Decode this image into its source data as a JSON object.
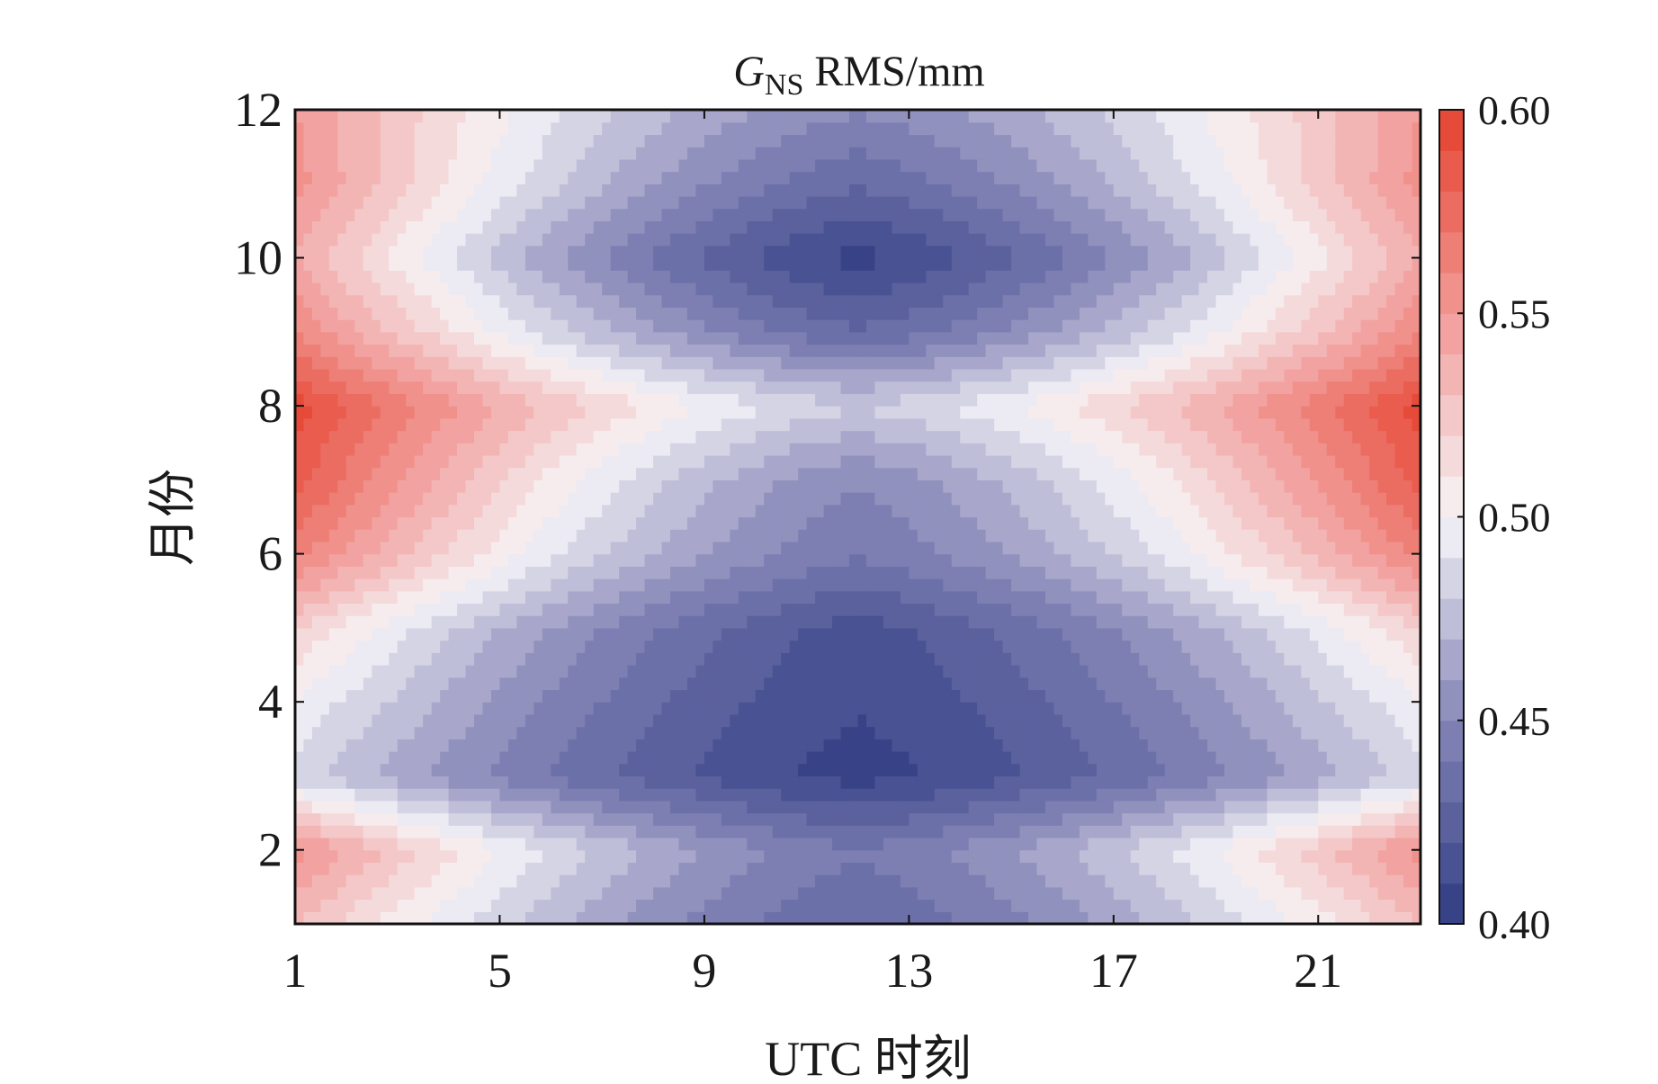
{
  "chart_data": {
    "type": "heatmap",
    "subtype": "filled-contour",
    "title": {
      "main": "G",
      "sub": "NS",
      "rest": " RMS/mm"
    },
    "xlabel": "UTC 时刻",
    "ylabel": "月份",
    "xlim": [
      1,
      23
    ],
    "ylim": [
      1,
      12
    ],
    "xticks": [
      1,
      5,
      9,
      13,
      17,
      21
    ],
    "yticks": [
      2,
      4,
      6,
      8,
      10,
      12
    ],
    "colorbar": {
      "range": [
        0.4,
        0.6
      ],
      "ticks": [
        "0.40",
        "0.45",
        "0.50",
        "0.55",
        "0.60"
      ],
      "level_step": 0.01,
      "colors": {
        "0.40": "#2f3b82",
        "0.45": "#8686b8",
        "0.50": "#f7f5f8",
        "0.55": "#f19a97",
        "0.60": "#e5412e"
      },
      "placement": "right"
    },
    "x": [
      1,
      2,
      3,
      4,
      5,
      6,
      7,
      8,
      9,
      10,
      11,
      12,
      13,
      14,
      15,
      16,
      17,
      18,
      19,
      20,
      21,
      22,
      23
    ],
    "y": [
      1,
      2,
      3,
      4,
      5,
      6,
      7,
      8,
      9,
      10,
      11,
      12
    ],
    "z": [
      [
        0.53,
        0.517,
        0.505,
        0.494,
        0.483,
        0.473,
        0.463,
        0.454,
        0.447,
        0.44,
        0.435,
        0.431,
        0.435,
        0.44,
        0.447,
        0.454,
        0.463,
        0.473,
        0.483,
        0.494,
        0.505,
        0.517,
        0.53
      ],
      [
        0.555,
        0.54,
        0.526,
        0.513,
        0.5,
        0.489,
        0.478,
        0.468,
        0.459,
        0.452,
        0.445,
        0.441,
        0.445,
        0.452,
        0.459,
        0.468,
        0.478,
        0.489,
        0.5,
        0.513,
        0.526,
        0.54,
        0.555
      ],
      [
        0.485,
        0.475,
        0.465,
        0.456,
        0.447,
        0.439,
        0.431,
        0.425,
        0.418,
        0.413,
        0.409,
        0.406,
        0.409,
        0.413,
        0.418,
        0.425,
        0.431,
        0.439,
        0.447,
        0.456,
        0.465,
        0.475,
        0.485
      ],
      [
        0.5,
        0.488,
        0.478,
        0.467,
        0.457,
        0.448,
        0.44,
        0.432,
        0.425,
        0.419,
        0.414,
        0.411,
        0.414,
        0.419,
        0.425,
        0.432,
        0.44,
        0.448,
        0.457,
        0.467,
        0.478,
        0.488,
        0.5
      ],
      [
        0.52,
        0.507,
        0.494,
        0.482,
        0.47,
        0.46,
        0.45,
        0.441,
        0.433,
        0.426,
        0.42,
        0.416,
        0.42,
        0.426,
        0.433,
        0.441,
        0.45,
        0.46,
        0.47,
        0.482,
        0.494,
        0.507,
        0.52
      ],
      [
        0.565,
        0.549,
        0.534,
        0.519,
        0.506,
        0.493,
        0.481,
        0.471,
        0.461,
        0.453,
        0.446,
        0.441,
        0.446,
        0.453,
        0.461,
        0.471,
        0.481,
        0.493,
        0.506,
        0.519,
        0.534,
        0.549,
        0.565
      ],
      [
        0.585,
        0.568,
        0.551,
        0.536,
        0.521,
        0.507,
        0.495,
        0.483,
        0.473,
        0.464,
        0.456,
        0.451,
        0.456,
        0.464,
        0.473,
        0.483,
        0.495,
        0.507,
        0.521,
        0.536,
        0.551,
        0.568,
        0.585
      ],
      [
        0.595,
        0.58,
        0.566,
        0.553,
        0.54,
        0.529,
        0.518,
        0.508,
        0.499,
        0.492,
        0.485,
        0.481,
        0.485,
        0.492,
        0.499,
        0.508,
        0.518,
        0.529,
        0.54,
        0.553,
        0.566,
        0.58,
        0.595
      ],
      [
        0.56,
        0.543,
        0.528,
        0.513,
        0.498,
        0.485,
        0.473,
        0.462,
        0.452,
        0.443,
        0.436,
        0.431,
        0.436,
        0.443,
        0.452,
        0.462,
        0.473,
        0.485,
        0.498,
        0.513,
        0.528,
        0.543,
        0.56
      ],
      [
        0.54,
        0.523,
        0.506,
        0.491,
        0.476,
        0.462,
        0.45,
        0.438,
        0.428,
        0.419,
        0.411,
        0.406,
        0.411,
        0.419,
        0.428,
        0.438,
        0.45,
        0.462,
        0.476,
        0.491,
        0.506,
        0.523,
        0.54
      ],
      [
        0.555,
        0.539,
        0.524,
        0.509,
        0.496,
        0.483,
        0.471,
        0.461,
        0.451,
        0.443,
        0.436,
        0.431,
        0.436,
        0.443,
        0.451,
        0.461,
        0.471,
        0.483,
        0.496,
        0.509,
        0.524,
        0.539,
        0.555
      ],
      [
        0.55,
        0.537,
        0.525,
        0.514,
        0.503,
        0.493,
        0.483,
        0.474,
        0.467,
        0.46,
        0.455,
        0.451,
        0.455,
        0.46,
        0.467,
        0.474,
        0.483,
        0.493,
        0.503,
        0.514,
        0.525,
        0.537,
        0.55
      ]
    ]
  }
}
